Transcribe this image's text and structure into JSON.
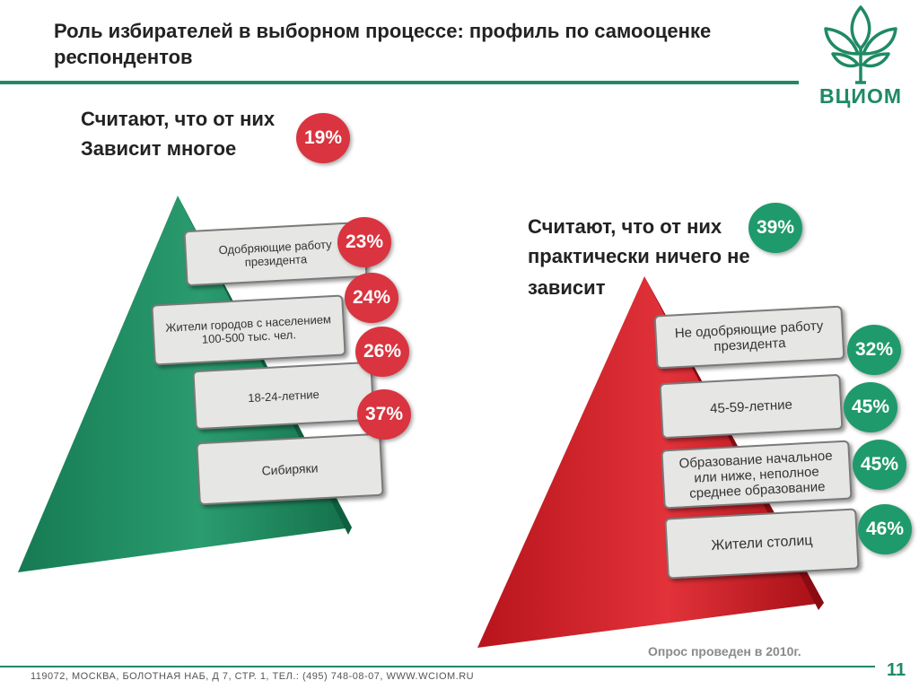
{
  "header": {
    "title": "Роль избирателей в выборном процессе: профиль по самооценке респондентов",
    "logo_text": "ВЦИОМ"
  },
  "left_group": {
    "heading_line1": "Считают, что от них",
    "heading_line2": "Зависит многое",
    "total": "19%",
    "items": [
      {
        "label": "Одобряющие работу президента",
        "value": "23%"
      },
      {
        "label": "Жители городов с населением 100-500 тыс. чел.",
        "value": "24%"
      },
      {
        "label": "18-24-летние",
        "value": "26%"
      },
      {
        "label": "Сибиряки",
        "value": "37%"
      }
    ]
  },
  "right_group": {
    "heading_line1": "Считают, что от них",
    "heading_line2": "практически ничего не",
    "heading_line3": "зависит",
    "total": "39%",
    "items": [
      {
        "label": "Не одобряющие работу президента",
        "value": "32%"
      },
      {
        "label": "45-59-летние",
        "value": "45%"
      },
      {
        "label": "Образование начальное или ниже, неполное среднее образование",
        "value": "45%"
      },
      {
        "label": "Жители столиц",
        "value": "46%"
      }
    ]
  },
  "footer": {
    "address": "119072, МОСКВА, БОЛОТНАЯ НАБ, Д 7, СТР. 1, ТЕЛ.: (495) 748-08-07, WWW.WCIOM.RU",
    "survey_note": "Опрос проведен в 2010г.",
    "page_number": "11"
  },
  "colors": {
    "green": "#1f8a64",
    "red": "#d9343f"
  }
}
